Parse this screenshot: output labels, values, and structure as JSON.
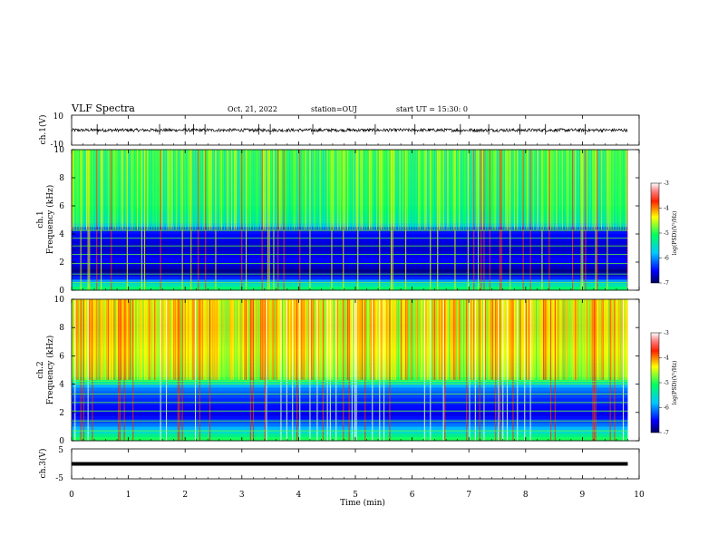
{
  "header": {
    "title": "VLF Spectra",
    "date": "Oct. 21, 2022",
    "station": "station=OUJ",
    "start": "start UT = 15:30: 0"
  },
  "chart_data": [
    {
      "type": "line",
      "name": "ch1-waveform",
      "ylabel": "ch.1(V)",
      "ylim": [
        -10,
        10
      ],
      "ytick_labels": [
        "10",
        "-10"
      ],
      "xlim": [
        0,
        10
      ],
      "trace_mean": 0,
      "trace_extent": [
        -1.5,
        1.2
      ],
      "trace_end_min": 9.8,
      "spike_times_min": [
        0.45,
        1.55,
        2.0,
        2.15,
        2.35,
        3.3,
        3.5,
        4.25,
        5.35,
        6.05,
        6.85,
        7.35,
        7.9,
        8.35,
        9.05
      ],
      "color": "#000000"
    },
    {
      "type": "heatmap",
      "name": "ch1-spectrogram",
      "ylabel": "Frequency (kHz)",
      "channel_label": "ch.1",
      "ylim": [
        0,
        10
      ],
      "yticks": [
        "0",
        "2",
        "4",
        "6",
        "8",
        "10"
      ],
      "xlim": [
        0,
        10
      ],
      "data_end_min": 9.8,
      "colorbar": {
        "label": "log(PSD)(V²/Hz)",
        "ticks": [
          "-3",
          "-4",
          "-5",
          "-6",
          "-7"
        ],
        "range": [
          -7,
          -3
        ]
      },
      "band_profile_khz": [
        {
          "khz": 10.0,
          "level": -4.8
        },
        {
          "khz": 8.0,
          "level": -4.9
        },
        {
          "khz": 6.0,
          "level": -5.0
        },
        {
          "khz": 4.8,
          "level": -5.4
        },
        {
          "khz": 4.4,
          "level": -6.4
        },
        {
          "khz": 3.0,
          "level": -6.7
        },
        {
          "khz": 2.0,
          "level": -6.5
        },
        {
          "khz": 1.3,
          "level": -6.9
        },
        {
          "khz": 0.8,
          "level": -6.3
        },
        {
          "khz": 0.3,
          "level": -5.3
        },
        {
          "khz": 0.0,
          "level": -5.0
        }
      ],
      "tone_lines_khz": [
        0.55,
        1.15,
        1.9,
        2.55,
        3.15,
        3.7,
        4.25
      ]
    },
    {
      "type": "heatmap",
      "name": "ch2-spectrogram",
      "ylabel": "Frequency (kHz)",
      "channel_label": "ch.2",
      "ylim": [
        0,
        10
      ],
      "yticks": [
        "0",
        "2",
        "4",
        "6",
        "8",
        "10"
      ],
      "xlim": [
        0,
        10
      ],
      "data_end_min": 9.8,
      "colorbar": {
        "label": "log(PSD)(V²/Hz)",
        "ticks": [
          "-3",
          "-4",
          "-5",
          "-6",
          "-7"
        ],
        "range": [
          -7,
          -3
        ]
      },
      "band_profile_khz": [
        {
          "khz": 10.0,
          "level": -4.3
        },
        {
          "khz": 8.0,
          "level": -4.2
        },
        {
          "khz": 6.0,
          "level": -4.4
        },
        {
          "khz": 4.5,
          "level": -4.7
        },
        {
          "khz": 3.8,
          "level": -6.0
        },
        {
          "khz": 2.8,
          "level": -6.4
        },
        {
          "khz": 1.8,
          "level": -6.6
        },
        {
          "khz": 1.0,
          "level": -6.0
        },
        {
          "khz": 0.4,
          "level": -5.3
        },
        {
          "khz": 0.0,
          "level": -4.9
        }
      ],
      "tone_lines_khz": [
        0.7,
        1.4,
        2.1,
        2.7,
        3.3,
        4.0,
        4.2
      ]
    },
    {
      "type": "line",
      "name": "ch3-waveform",
      "ylabel": "ch.3(V)",
      "ylim": [
        -5,
        5
      ],
      "ytick_labels": [
        "5",
        "-5"
      ],
      "xlim": [
        0,
        10
      ],
      "trace_value": 0,
      "trace_end_min": 9.8,
      "color": "#000000"
    }
  ],
  "xaxis": {
    "label": "Time (min)",
    "ticks": [
      "0",
      "1",
      "2",
      "3",
      "4",
      "5",
      "6",
      "7",
      "8",
      "9",
      "10"
    ]
  }
}
